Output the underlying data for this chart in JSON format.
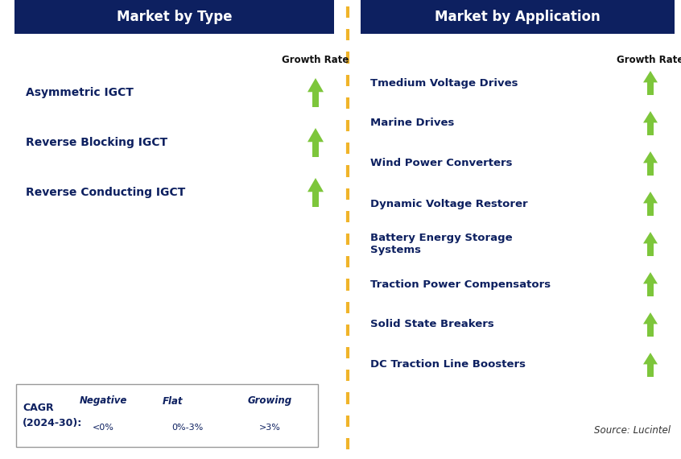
{
  "title_left": "Market by Type",
  "title_right": "Market by Application",
  "header_bg": "#0d2060",
  "header_fg": "#ffffff",
  "left_items": [
    "Asymmetric IGCT",
    "Reverse Blocking IGCT",
    "Reverse Conducting IGCT"
  ],
  "right_items": [
    "Tmedium Voltage Drives",
    "Marine Drives",
    "Wind Power Converters",
    "Dynamic Voltage Restorer",
    "Battery Energy Storage\nSystems",
    "Traction Power Compensators",
    "Solid State Breakers",
    "DC Traction Line Boosters"
  ],
  "left_arrow_colors": [
    "#7dc63b",
    "#7dc63b",
    "#7dc63b"
  ],
  "right_arrow_colors": [
    "#7dc63b",
    "#7dc63b",
    "#7dc63b",
    "#7dc63b",
    "#7dc63b",
    "#7dc63b",
    "#7dc63b",
    "#7dc63b"
  ],
  "item_text_color": "#0d2060",
  "growth_rate_label": "Growth Rate",
  "legend_title": "CAGR\n(2024-30):",
  "legend_negative_label": "Negative",
  "legend_negative_sub": "<0%",
  "legend_flat_label": "Flat",
  "legend_flat_sub": "0%-3%",
  "legend_growing_label": "Growing",
  "legend_growing_sub": ">3%",
  "source_text": "Source: Lucintel",
  "bg_color": "#ffffff",
  "dashed_line_color": "#f0b429",
  "neg_arrow_color": "#cc1111",
  "flat_arrow_color": "#f0b429"
}
